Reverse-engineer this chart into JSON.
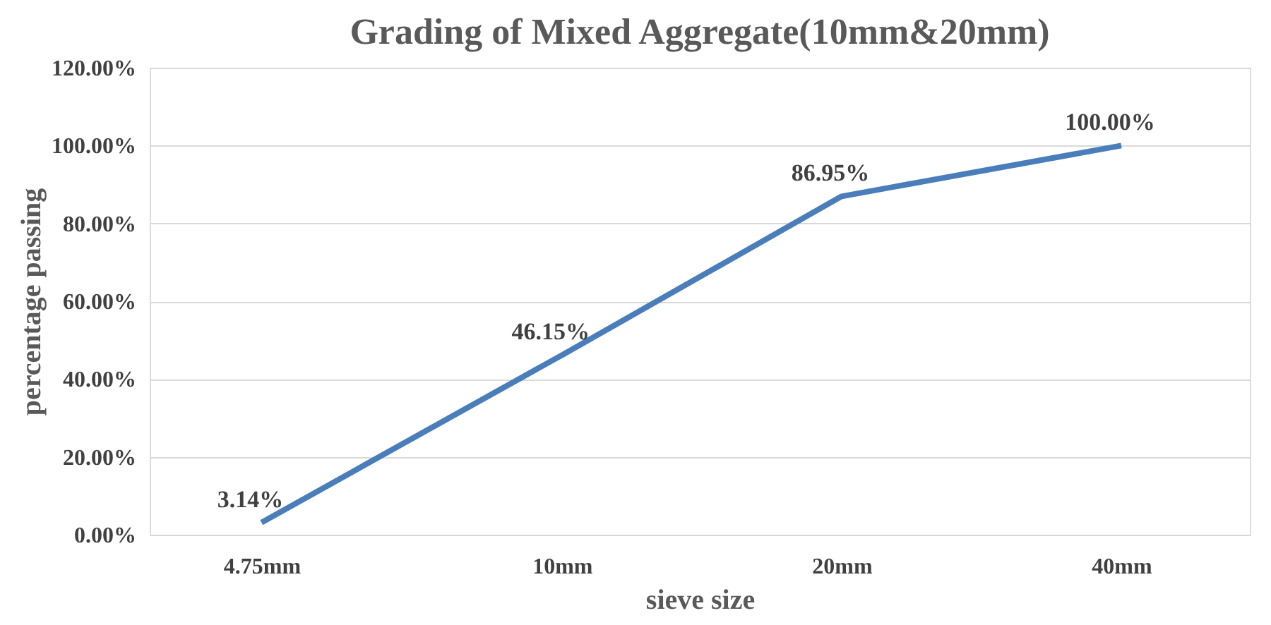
{
  "chart_data": {
    "type": "line",
    "title": "Grading of Mixed Aggregate(10mm&20mm)",
    "xlabel": "sieve size",
    "ylabel": "percentage passing",
    "x": [
      4.75,
      10,
      20,
      40
    ],
    "log": "x",
    "xlim": [
      3.6,
      55
    ],
    "xticks": [
      {
        "value": 4.75,
        "label": "4.75mm"
      },
      {
        "value": 10,
        "label": "10mm"
      },
      {
        "value": 20,
        "label": "20mm"
      },
      {
        "value": 40,
        "label": "40mm"
      }
    ],
    "ylim": [
      0,
      120
    ],
    "yticks": [
      {
        "value": 0,
        "label": "0.00%"
      },
      {
        "value": 20,
        "label": "20.00%"
      },
      {
        "value": 40,
        "label": "40.00%"
      },
      {
        "value": 60,
        "label": "60.00%"
      },
      {
        "value": 80,
        "label": "80.00%"
      },
      {
        "value": 100,
        "label": "100.00%"
      },
      {
        "value": 120,
        "label": "120.00%"
      }
    ],
    "series": [
      {
        "color": "#4a7ebb",
        "values": [
          3.14,
          46.15,
          86.95,
          100
        ],
        "value_labels": [
          "3.14%",
          "46.15%",
          "86.95%",
          "100.00%"
        ]
      }
    ],
    "grid": "y",
    "marker": "none",
    "line_style": "solid"
  }
}
